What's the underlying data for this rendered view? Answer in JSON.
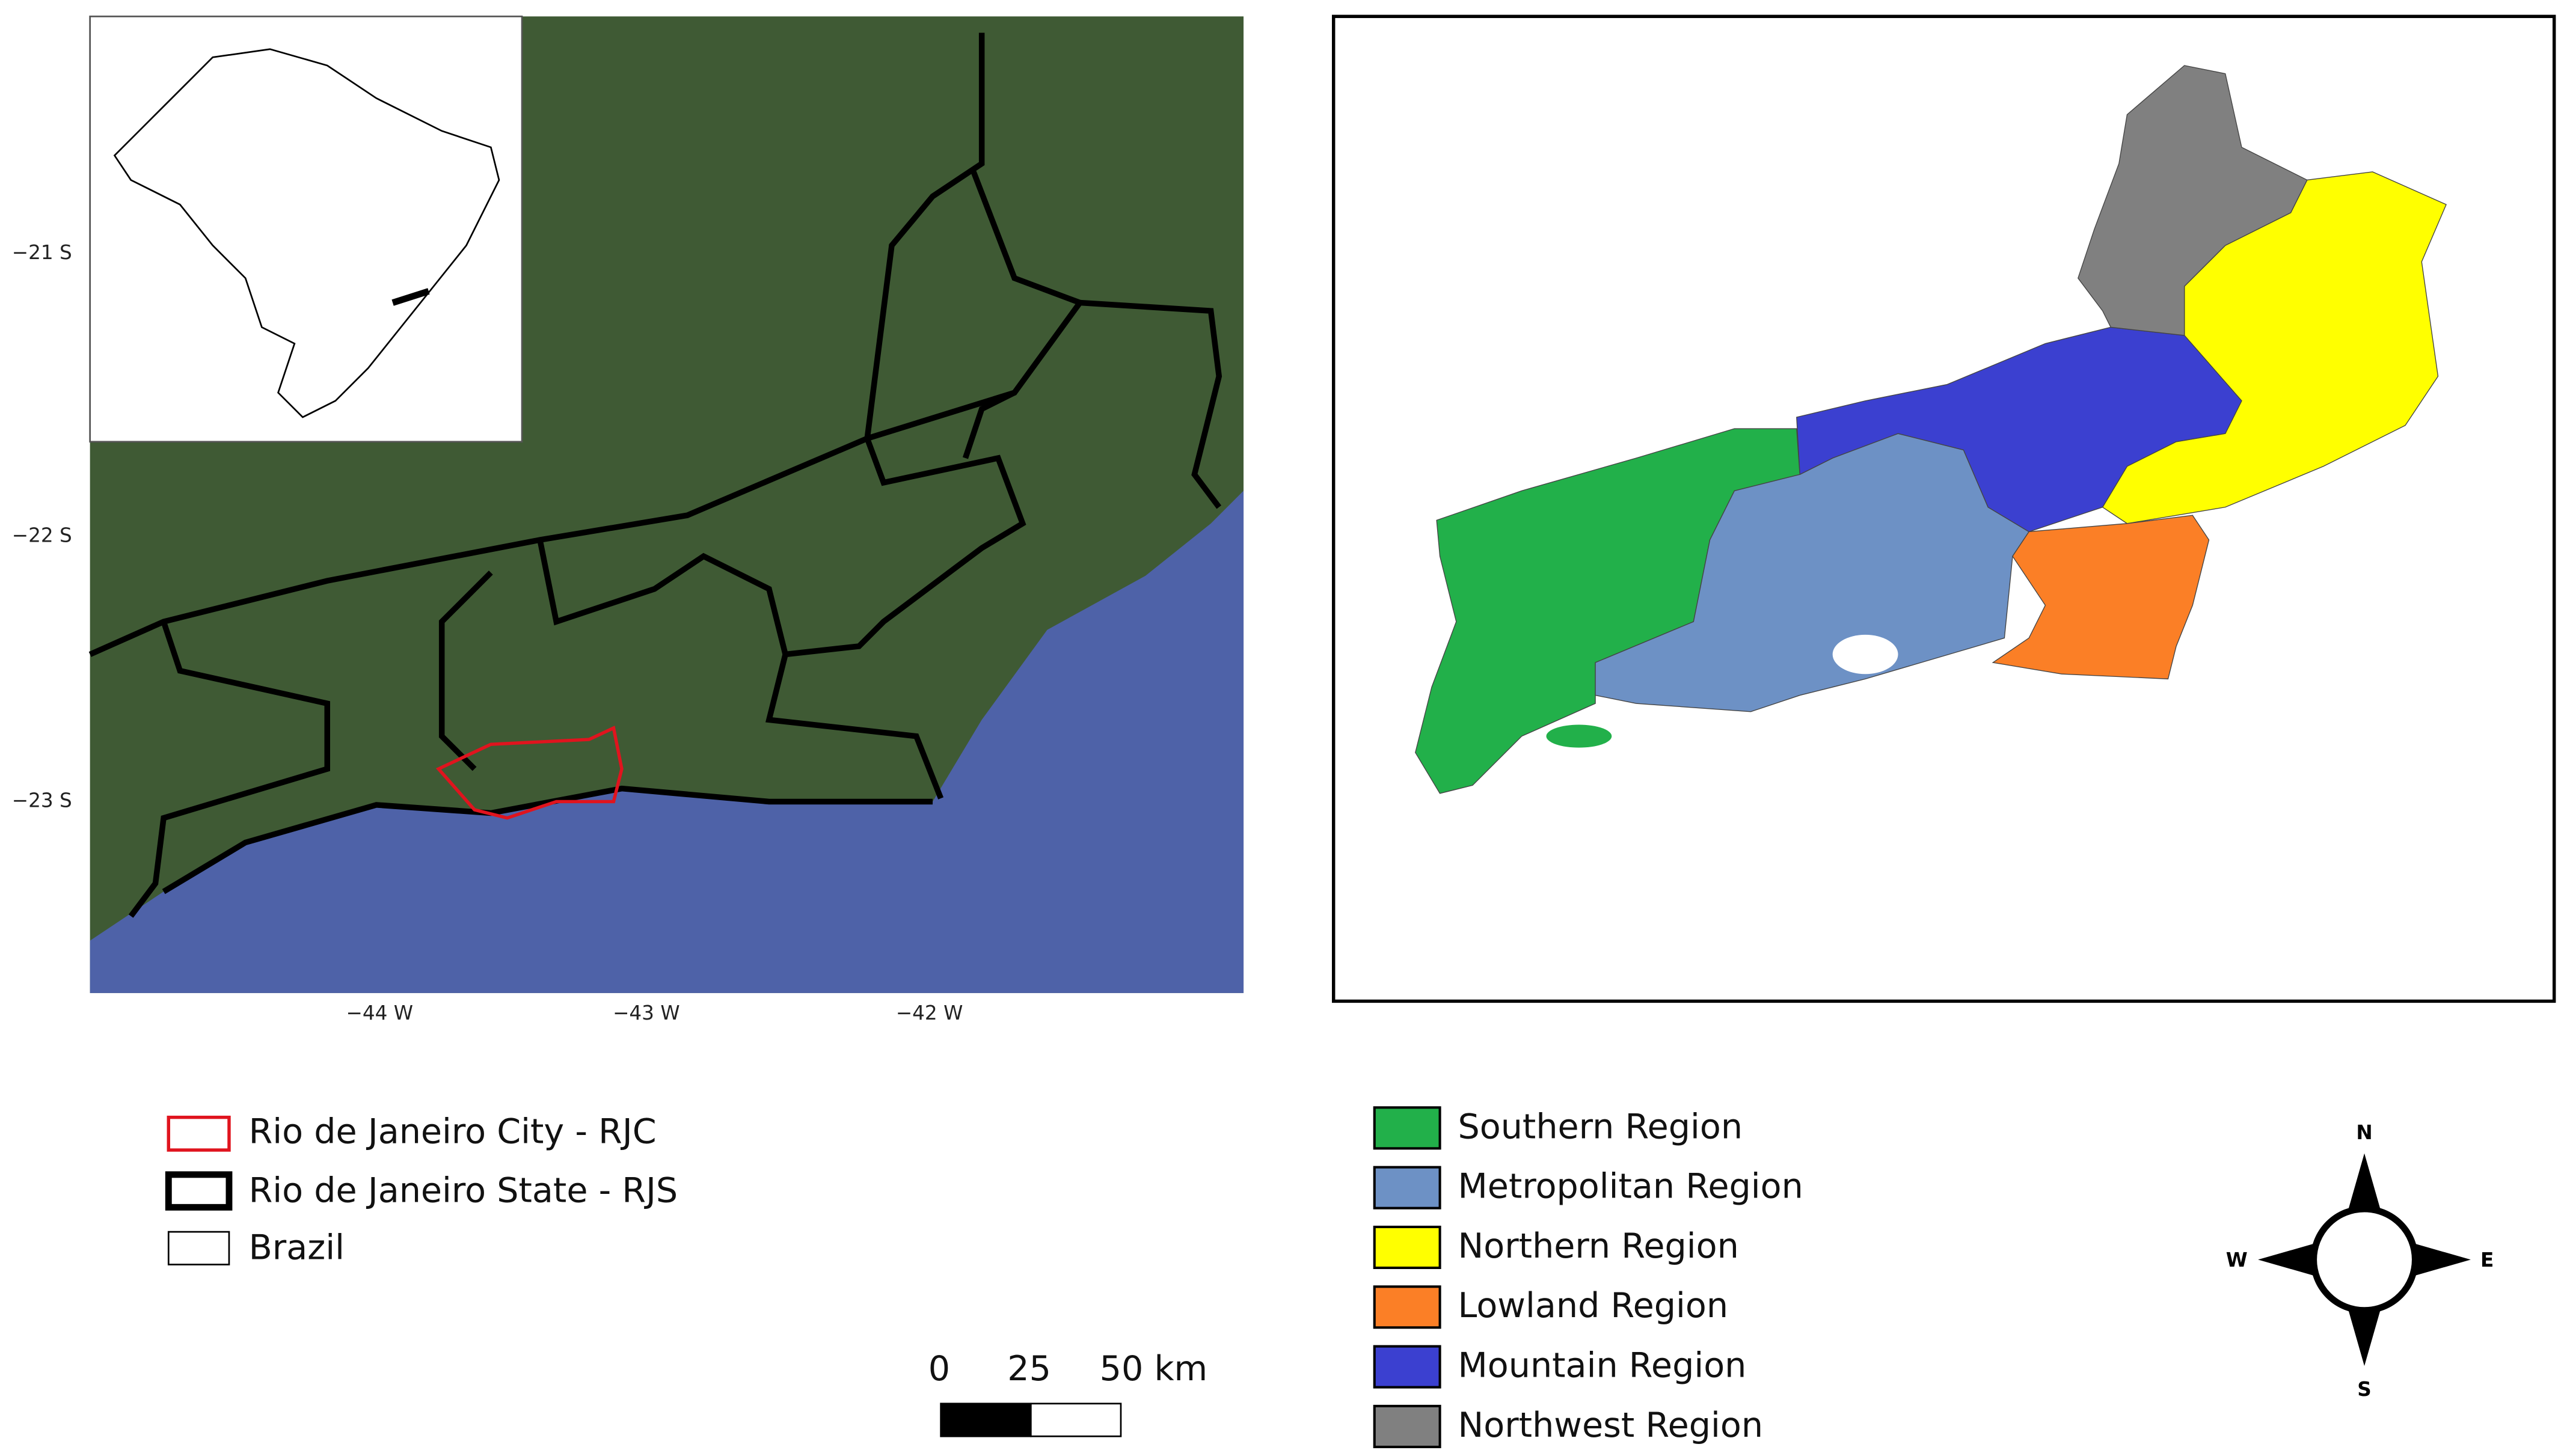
{
  "map": {
    "lat_labels": [
      "−21 S",
      "−22 S",
      "−23 S"
    ],
    "lon_labels": [
      "−44 W",
      "−43 W",
      "−42 W"
    ]
  },
  "location_legend": [
    "Rio de Janeiro City - RJC",
    "Rio de Janeiro State - RJS",
    "Brazil"
  ],
  "scale_bar": {
    "labels": [
      "0",
      "25",
      "50 km"
    ]
  },
  "regions_legend": [
    {
      "label": "Southern Region",
      "color": "#22b04a"
    },
    {
      "label": "Metropolitan  Region",
      "color": "#6d91c5"
    },
    {
      "label": "Northern Region",
      "color": "#ffff00"
    },
    {
      "label": "Lowland Region",
      "color": "#fb7f26"
    },
    {
      "label": "Mountain Region",
      "color": "#3b40d0"
    },
    {
      "label": "Northwest Region",
      "color": "#808080"
    }
  ],
  "compass": {
    "n": "N",
    "s": "S",
    "w": "W",
    "e": "E"
  }
}
